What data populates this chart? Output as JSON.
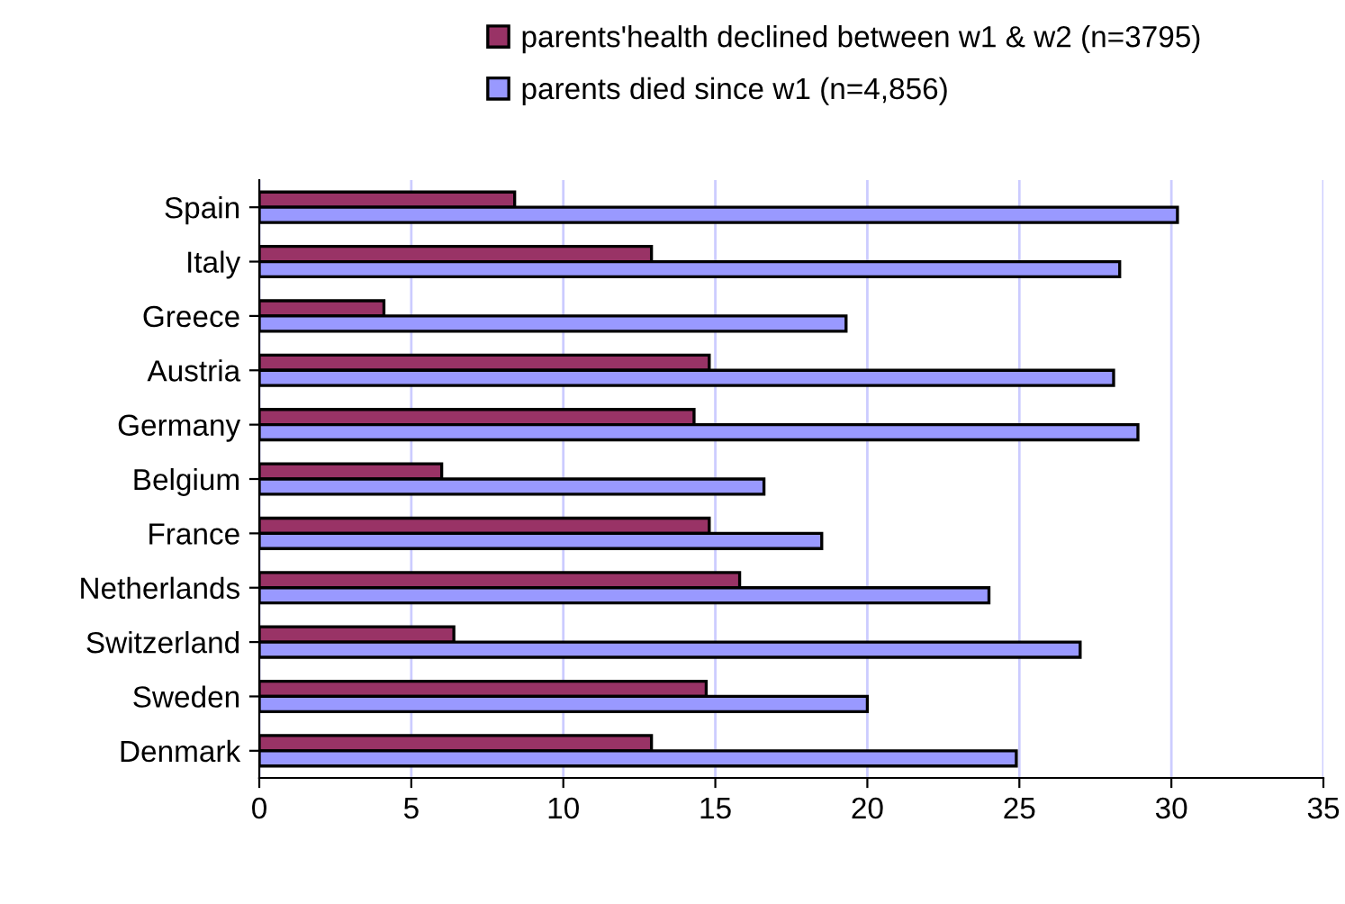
{
  "chart_data": {
    "type": "bar",
    "orientation": "horizontal",
    "categories": [
      "Spain",
      "Italy",
      "Greece",
      "Austria",
      "Germany",
      "Belgium",
      "France",
      "Netherlands",
      "Switzerland",
      "Sweden",
      "Denmark"
    ],
    "series": [
      {
        "name": "parents'health declined between w1 & w2 (n=3795)",
        "color": "#993366",
        "values": [
          8.4,
          12.9,
          4.1,
          14.8,
          14.3,
          6.0,
          14.8,
          15.8,
          6.4,
          14.7,
          12.9
        ]
      },
      {
        "name": "parents died since w1 (n=4,856)",
        "color": "#9999ff",
        "values": [
          30.2,
          28.3,
          19.3,
          28.1,
          28.9,
          16.6,
          18.5,
          24.0,
          27.0,
          20.0,
          24.9
        ]
      }
    ],
    "xlim": [
      0,
      35
    ],
    "xticks": [
      0,
      5,
      10,
      15,
      20,
      25,
      30,
      35
    ],
    "grid": "x",
    "legend": "top"
  }
}
